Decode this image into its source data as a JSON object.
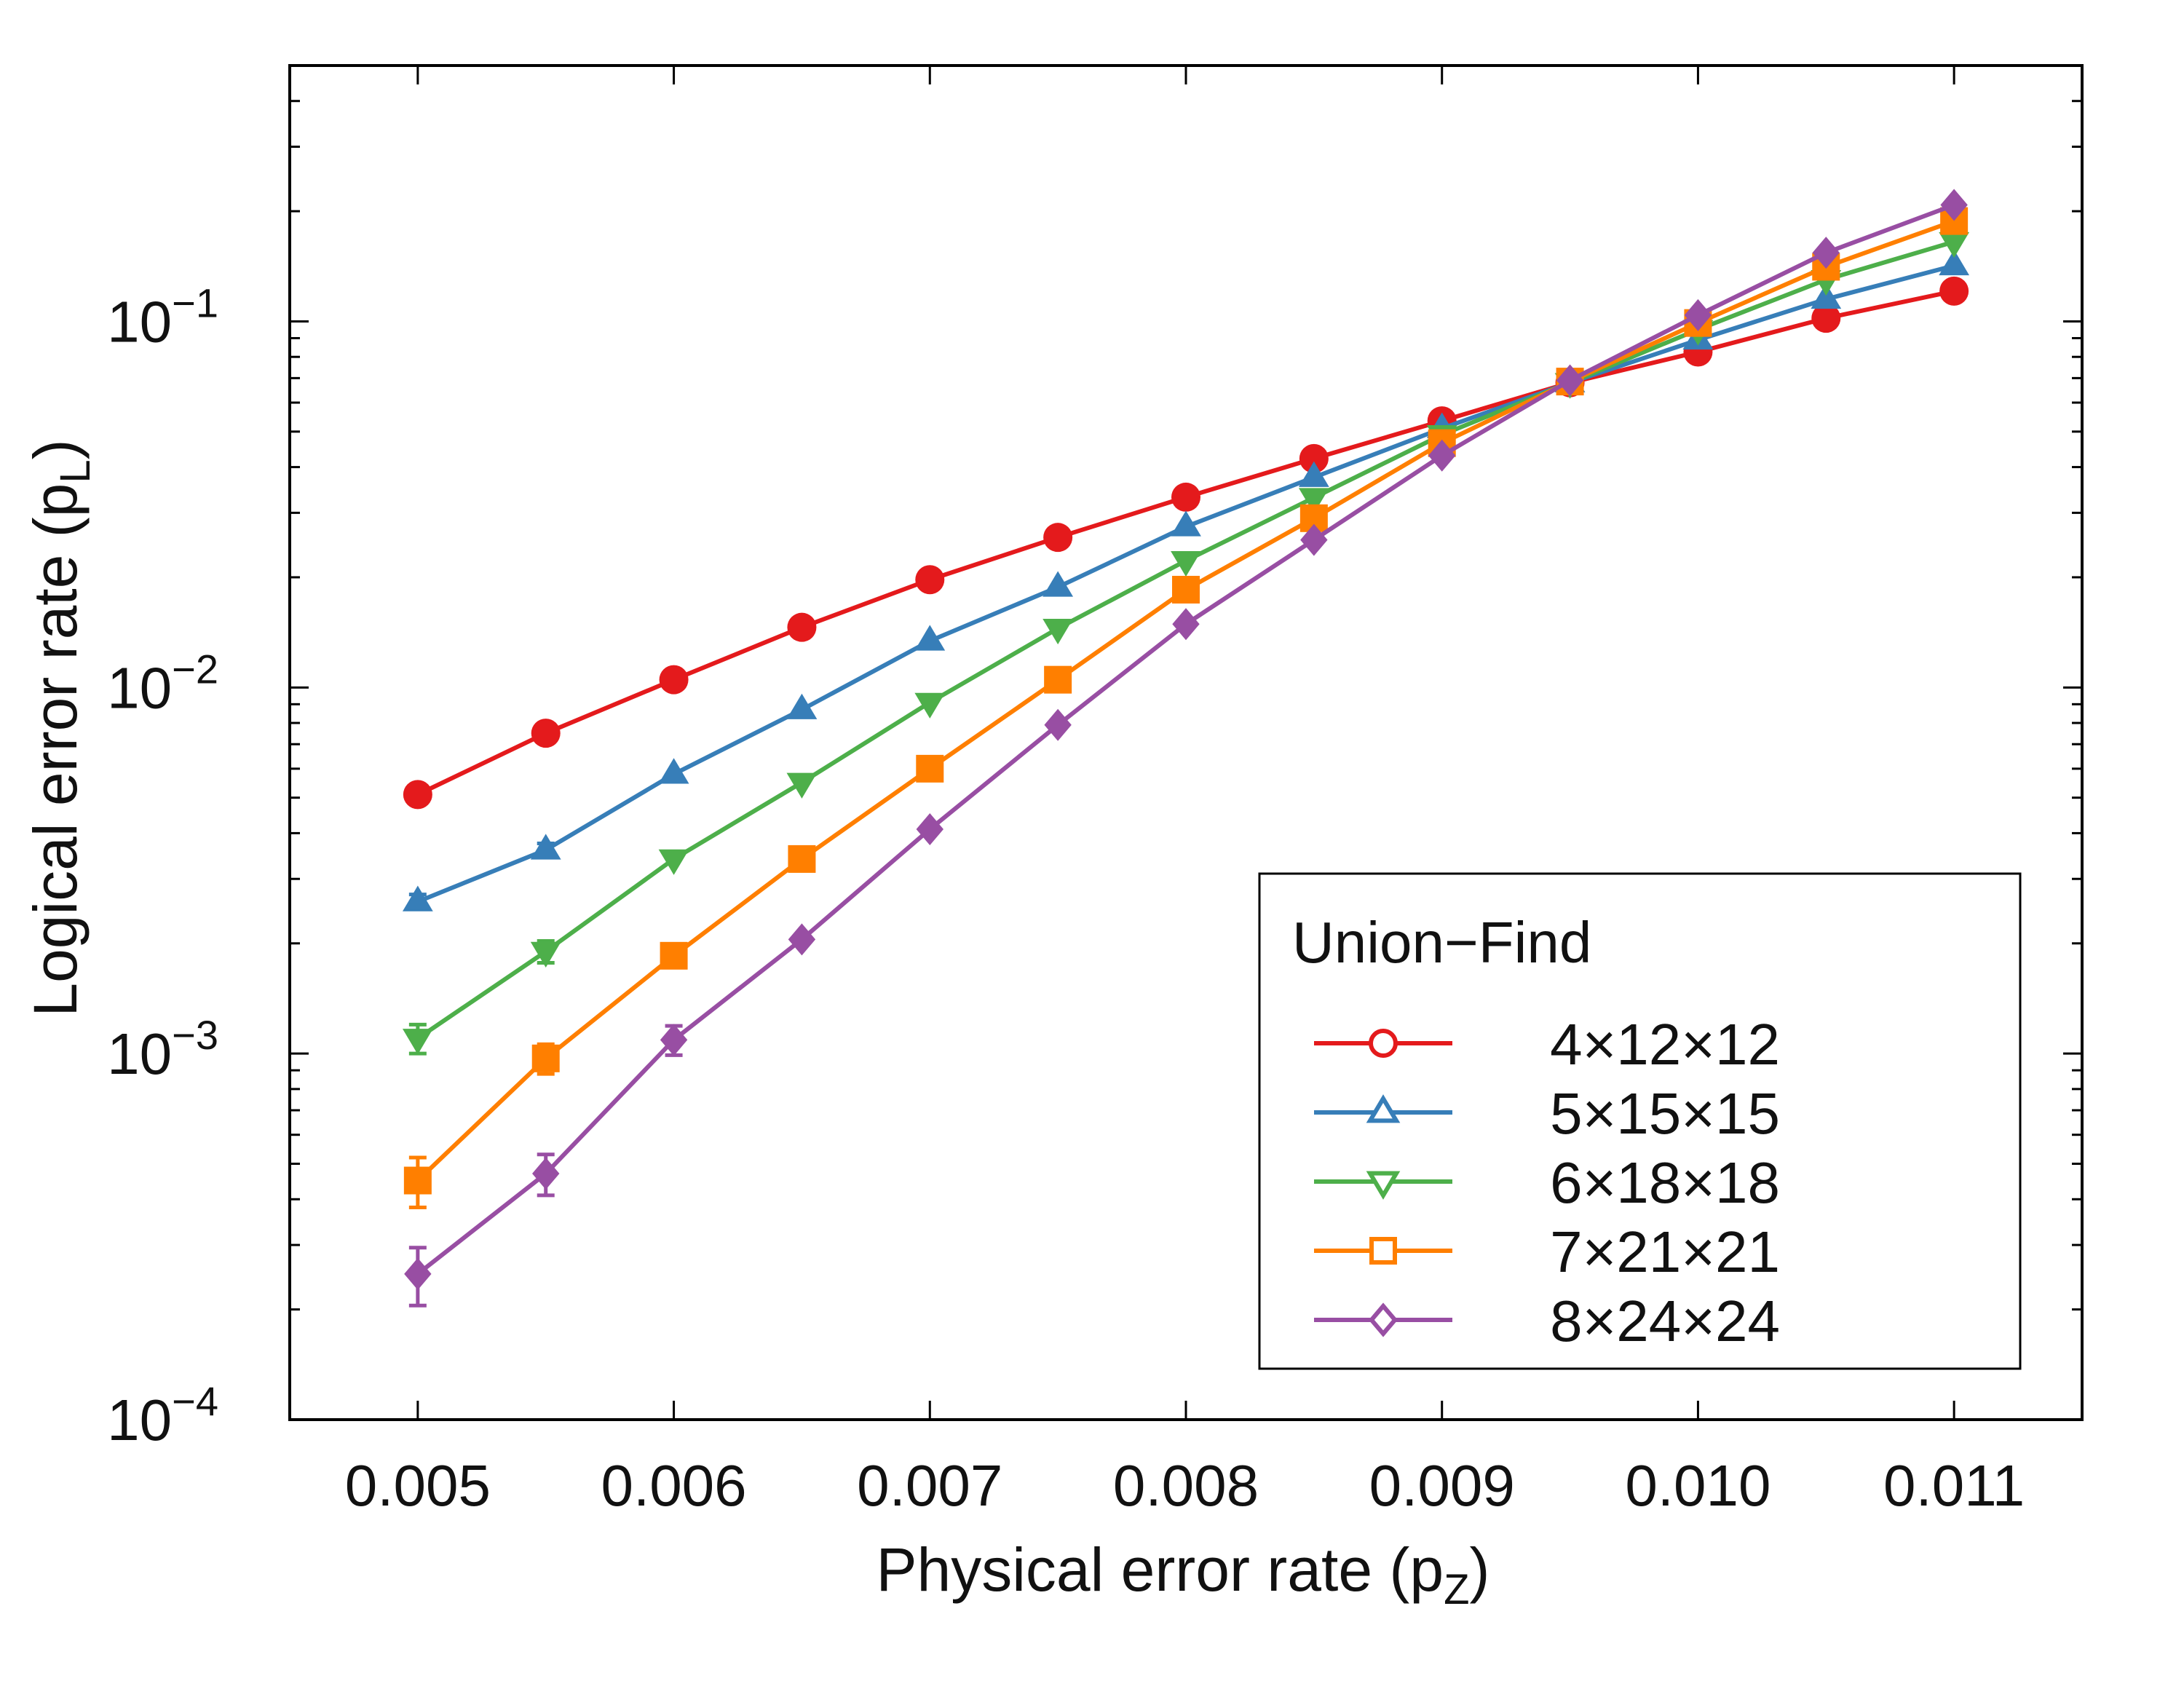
{
  "chart_data": {
    "type": "line",
    "title": "",
    "xlabel": "Physical error rate (p",
    "xlabel_sub": "Z",
    "xlabel_end": ")",
    "ylabel": "Logical error rate (p",
    "ylabel_sub": "L",
    "ylabel_end": ")",
    "x": [
      0.005,
      0.0055,
      0.006,
      0.0065,
      0.007,
      0.0075,
      0.008,
      0.0085,
      0.009,
      0.0095,
      0.01,
      0.0105,
      0.011
    ],
    "xlim": [
      0.0045,
      0.0115
    ],
    "xscale": "linear",
    "x_ticks": [
      0.005,
      0.006,
      0.007,
      0.008,
      0.009,
      0.01,
      0.011
    ],
    "x_tick_labels": [
      "0.005",
      "0.006",
      "0.007",
      "0.008",
      "0.009",
      "0.010",
      "0.011"
    ],
    "ylim": [
      0.0001,
      0.5
    ],
    "yscale": "log",
    "y_ticks": [
      {
        "value": 0.1,
        "base": "10",
        "exp": "−1"
      },
      {
        "value": 0.01,
        "base": "10",
        "exp": "−2"
      },
      {
        "value": 0.001,
        "base": "10",
        "exp": "−3"
      },
      {
        "value": 0.0001,
        "base": "10",
        "exp": "−4"
      }
    ],
    "grid": false,
    "legend": {
      "title": "Union−Find",
      "position": "bottom-right"
    },
    "series": [
      {
        "name": "4×12×12",
        "color": "#e41a1c",
        "marker": "circle",
        "values": [
          0.0051,
          0.0075,
          0.0105,
          0.0146,
          0.0197,
          0.0257,
          0.0331,
          0.0422,
          0.0535,
          0.068,
          0.0825,
          0.102,
          0.121
        ],
        "errors": [
          0,
          0,
          0,
          0,
          0,
          0,
          0,
          0,
          0,
          0,
          0,
          0,
          0
        ]
      },
      {
        "name": "5×15×15",
        "color": "#377eb8",
        "marker": "triangle-up",
        "values": [
          0.0026,
          0.0036,
          0.0058,
          0.0087,
          0.0134,
          0.0188,
          0.0275,
          0.0375,
          0.051,
          0.068,
          0.089,
          0.115,
          0.142
        ],
        "errors": [
          0.00012,
          0.00015,
          0,
          0,
          0,
          0,
          0,
          0,
          0,
          0,
          0,
          0,
          0
        ]
      },
      {
        "name": "6×18×18",
        "color": "#4daf4a",
        "marker": "triangle-down",
        "values": [
          0.0011,
          0.0019,
          0.0034,
          0.0055,
          0.0091,
          0.0145,
          0.0222,
          0.033,
          0.049,
          0.068,
          0.095,
          0.13,
          0.165
        ],
        "errors": [
          0.0001,
          0.00013,
          0,
          0,
          0,
          0,
          0,
          0,
          0,
          0,
          0,
          0,
          0
        ]
      },
      {
        "name": "7×21×21",
        "color": "#ff7f00",
        "marker": "square",
        "values": [
          0.00045,
          0.00097,
          0.00185,
          0.0034,
          0.006,
          0.0105,
          0.0185,
          0.029,
          0.0465,
          0.0685,
          0.099,
          0.141,
          0.188
        ],
        "errors": [
          7e-05,
          9e-05,
          0,
          0,
          0,
          0,
          0,
          0,
          0,
          0,
          0,
          0,
          0
        ]
      },
      {
        "name": "8×24×24",
        "color": "#984ea3",
        "marker": "diamond",
        "values": [
          0.00025,
          0.00047,
          0.00109,
          0.00205,
          0.0041,
          0.0079,
          0.0149,
          0.0253,
          0.043,
          0.069,
          0.104,
          0.154,
          0.208
        ],
        "errors": [
          4.5e-05,
          6e-05,
          0.0001,
          0,
          0,
          0,
          0,
          0,
          0,
          0,
          0,
          0,
          0
        ]
      }
    ]
  }
}
